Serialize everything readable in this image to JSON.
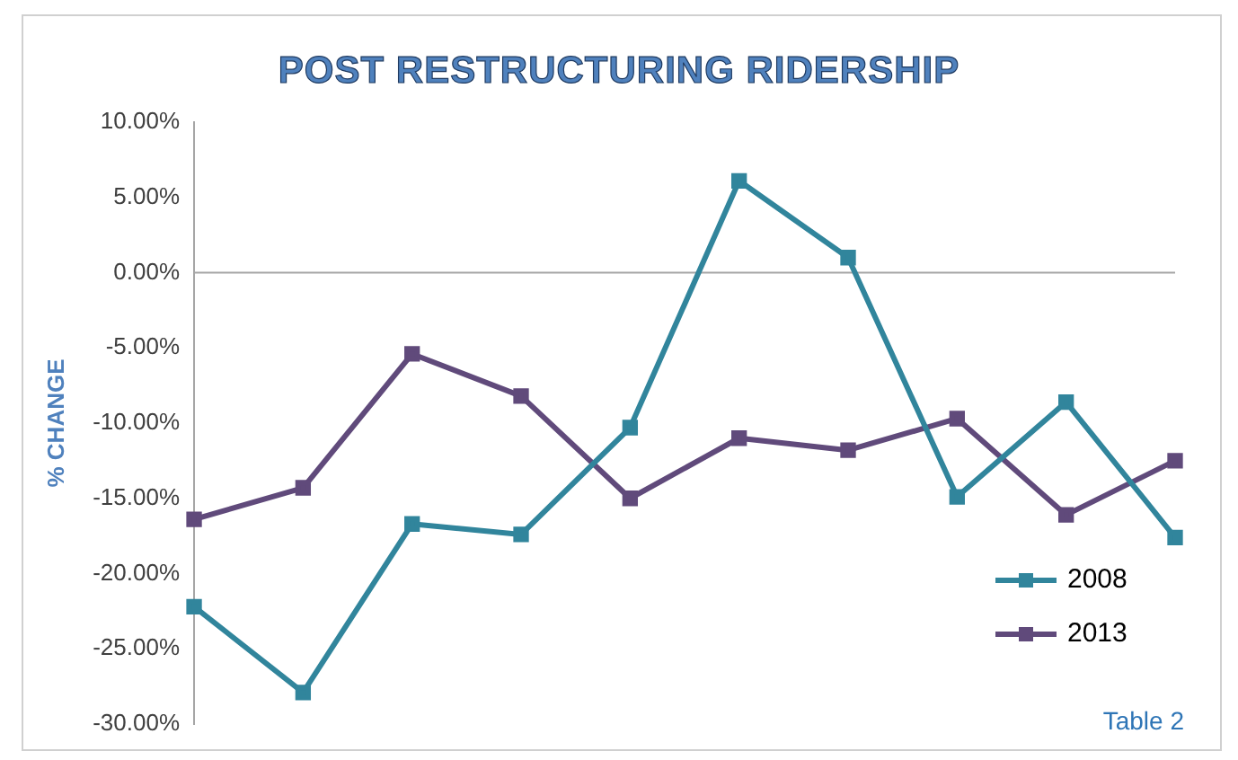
{
  "chart_data": {
    "type": "line",
    "title": "POST RESTRUCTURING RIDERSHIP",
    "ylabel": "% CHANGE",
    "annotations": [
      "Table 2"
    ],
    "categories": [
      null,
      null,
      null,
      null,
      null,
      null,
      null,
      null,
      null,
      null
    ],
    "series": [
      {
        "name": "2008",
        "color": "#31859c",
        "values": [
          -22.2,
          -27.9,
          -16.7,
          -17.4,
          -10.3,
          6.1,
          1.0,
          -14.9,
          -8.6,
          -17.6
        ]
      },
      {
        "name": "2013",
        "color": "#604a7b",
        "values": [
          -16.4,
          -14.3,
          -5.4,
          -8.2,
          -15.0,
          -11.0,
          -11.8,
          -9.7,
          -16.1,
          -12.5
        ]
      }
    ],
    "ylim": [
      -30,
      10
    ],
    "yticks": [
      {
        "value": 10,
        "label": "10.00%"
      },
      {
        "value": 5,
        "label": "5.00%"
      },
      {
        "value": 0,
        "label": "0.00%"
      },
      {
        "value": -5,
        "label": "-5.00%"
      },
      {
        "value": -10,
        "label": "-10.00%"
      },
      {
        "value": -15,
        "label": "-15.00%"
      },
      {
        "value": -20,
        "label": "-20.00%"
      },
      {
        "value": -25,
        "label": "-25.00%"
      },
      {
        "value": -30,
        "label": "-30.00%"
      }
    ],
    "ref_lines": [
      {
        "axis": "y",
        "value": 0,
        "color": "#a6a6a6"
      }
    ],
    "grid": false,
    "legend": "bottom right",
    "marker": "square",
    "line_style": "solid",
    "tick_labels": "y"
  }
}
